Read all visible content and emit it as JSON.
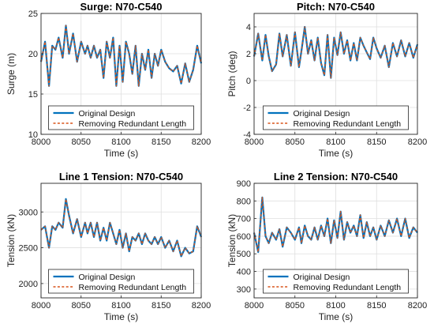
{
  "colors": {
    "original": "#0072BD",
    "redundant": "#D95319",
    "axis": "#262626",
    "grid": "#DFDFDF"
  },
  "legend": {
    "original": "Original Design",
    "redundant": "Removing Redundant Length"
  },
  "chart_data": [
    {
      "type": "line",
      "title": "Surge: N70-C540",
      "xlabel": "Time (s)",
      "ylabel": "Surge (m)",
      "xlim": [
        8000,
        8200
      ],
      "ylim": [
        10,
        25
      ],
      "xticks": [
        8000,
        8050,
        8100,
        8150,
        8200
      ],
      "yticks": [
        10,
        15,
        20,
        25
      ],
      "grid": true,
      "legend_position": "bottom-center",
      "series": [
        {
          "name": "Original Design",
          "x": [
            8000,
            8005,
            8010,
            8014,
            8018,
            8022,
            8027,
            8031,
            8035,
            8040,
            8045,
            8050,
            8055,
            8058,
            8062,
            8066,
            8070,
            8074,
            8078,
            8082,
            8086,
            8090,
            8094,
            8098,
            8102,
            8106,
            8110,
            8114,
            8118,
            8122,
            8126,
            8130,
            8134,
            8138,
            8142,
            8146,
            8150,
            8155,
            8160,
            8165,
            8170,
            8175,
            8180,
            8185,
            8190,
            8195,
            8200
          ],
          "values": [
            19,
            21.5,
            16,
            21,
            20.5,
            22,
            19.5,
            23.5,
            20,
            22.5,
            19,
            21.5,
            20,
            21,
            19.5,
            21,
            19.5,
            20.5,
            17,
            21.5,
            19.5,
            22,
            16,
            21,
            16.5,
            21.5,
            20,
            17.5,
            21,
            16,
            20,
            18,
            20.5,
            17,
            20,
            18.5,
            20.5,
            19,
            18.2,
            17.8,
            18.5,
            16.3,
            18.8,
            16.5,
            18,
            21,
            18.8
          ]
        },
        {
          "name": "Removing Redundant Length",
          "x": [
            8000,
            8005,
            8010,
            8014,
            8018,
            8022,
            8027,
            8031,
            8035,
            8040,
            8045,
            8050,
            8055,
            8058,
            8062,
            8066,
            8070,
            8074,
            8078,
            8082,
            8086,
            8090,
            8094,
            8098,
            8102,
            8106,
            8110,
            8114,
            8118,
            8122,
            8126,
            8130,
            8134,
            8138,
            8142,
            8146,
            8150,
            8155,
            8160,
            8165,
            8170,
            8175,
            8180,
            8185,
            8190,
            8195,
            8200
          ],
          "values": [
            19,
            21.5,
            16,
            21,
            20.5,
            22,
            19.5,
            23.5,
            20,
            22.5,
            19,
            21.5,
            20,
            21,
            19.5,
            21,
            19.5,
            20.5,
            17,
            21.5,
            19.5,
            22,
            16,
            21,
            16.5,
            21.5,
            20,
            17.5,
            21,
            16,
            20,
            18,
            20.5,
            17,
            20,
            18.5,
            20.5,
            19,
            18.2,
            17.8,
            18.5,
            16.3,
            18.8,
            16.5,
            18,
            21,
            18.8
          ]
        }
      ]
    },
    {
      "type": "line",
      "title": "Pitch: N70-C540",
      "xlabel": "Time (s)",
      "ylabel": "Pitch (deg)",
      "xlim": [
        8000,
        8200
      ],
      "ylim": [
        -4,
        5
      ],
      "xticks": [
        8000,
        8050,
        8100,
        8150,
        8200
      ],
      "yticks": [
        -4,
        -2,
        0,
        2,
        4
      ],
      "grid": true,
      "legend_position": "bottom-center",
      "series": [
        {
          "name": "Original Design",
          "x": [
            8000,
            8005,
            8010,
            8014,
            8018,
            8022,
            8027,
            8031,
            8035,
            8040,
            8045,
            8050,
            8055,
            8058,
            8062,
            8066,
            8070,
            8074,
            8078,
            8082,
            8086,
            8090,
            8094,
            8098,
            8102,
            8106,
            8110,
            8114,
            8118,
            8122,
            8126,
            8130,
            8134,
            8138,
            8142,
            8146,
            8150,
            8155,
            8160,
            8165,
            8170,
            8175,
            8180,
            8185,
            8190,
            8195,
            8200
          ],
          "values": [
            1.8,
            3.5,
            1.5,
            3.4,
            1.8,
            0.7,
            1.2,
            3.5,
            1.8,
            3.4,
            1.1,
            3.6,
            1,
            2.2,
            4,
            2,
            3,
            1.5,
            3.2,
            1.3,
            0.4,
            3.4,
            0.2,
            3.2,
            1.9,
            3.6,
            2,
            3,
            1.5,
            2.8,
            1.5,
            3.2,
            2.6,
            2.1,
            1.6,
            3.2,
            2.4,
            1.7,
            2.6,
            1,
            2.8,
            1.8,
            3,
            1.8,
            2.8,
            1.7,
            2.7
          ]
        },
        {
          "name": "Removing Redundant Length",
          "x": [
            8000,
            8005,
            8010,
            8014,
            8018,
            8022,
            8027,
            8031,
            8035,
            8040,
            8045,
            8050,
            8055,
            8058,
            8062,
            8066,
            8070,
            8074,
            8078,
            8082,
            8086,
            8090,
            8094,
            8098,
            8102,
            8106,
            8110,
            8114,
            8118,
            8122,
            8126,
            8130,
            8134,
            8138,
            8142,
            8146,
            8150,
            8155,
            8160,
            8165,
            8170,
            8175,
            8180,
            8185,
            8190,
            8195,
            8200
          ],
          "values": [
            1.8,
            3.5,
            1.5,
            3.4,
            1.8,
            0.7,
            1.2,
            3.5,
            1.8,
            3.4,
            1.1,
            3.6,
            1,
            2.2,
            4,
            2,
            3,
            1.5,
            3.2,
            1.3,
            0.4,
            3.4,
            0.2,
            3.2,
            1.9,
            3.6,
            2,
            3,
            1.5,
            2.8,
            1.5,
            3.2,
            2.6,
            2.1,
            1.6,
            3.2,
            2.4,
            1.7,
            2.6,
            1,
            2.8,
            1.8,
            3,
            1.8,
            2.8,
            1.7,
            2.7
          ]
        }
      ]
    },
    {
      "type": "line",
      "title": "Line 1 Tension: N70-C540",
      "xlabel": "Time (s)",
      "ylabel": "Tension (kN)",
      "xlim": [
        8000,
        8200
      ],
      "ylim": [
        1800,
        3400
      ],
      "xticks": [
        8000,
        8050,
        8100,
        8150,
        8200
      ],
      "yticks": [
        2000,
        2500,
        3000
      ],
      "grid": true,
      "legend_position": "bottom-center",
      "series": [
        {
          "name": "Original Design",
          "x": [
            8000,
            8005,
            8010,
            8014,
            8018,
            8022,
            8027,
            8031,
            8035,
            8040,
            8045,
            8050,
            8055,
            8058,
            8062,
            8066,
            8070,
            8074,
            8078,
            8082,
            8086,
            8090,
            8094,
            8098,
            8102,
            8106,
            8110,
            8114,
            8118,
            8122,
            8126,
            8130,
            8134,
            8138,
            8142,
            8146,
            8150,
            8155,
            8160,
            8165,
            8170,
            8175,
            8180,
            8185,
            8190,
            8195,
            8200
          ],
          "values": [
            2750,
            2800,
            2500,
            2800,
            2750,
            2850,
            2780,
            3180,
            2950,
            2700,
            2900,
            2650,
            2850,
            2700,
            2850,
            2650,
            2850,
            2600,
            2780,
            2600,
            2850,
            2700,
            2550,
            2750,
            2500,
            2700,
            2450,
            2650,
            2600,
            2700,
            2550,
            2700,
            2600,
            2550,
            2650,
            2550,
            2650,
            2500,
            2600,
            2450,
            2600,
            2380,
            2500,
            2420,
            2450,
            2800,
            2650
          ]
        },
        {
          "name": "Removing Redundant Length",
          "x": [
            8000,
            8005,
            8010,
            8014,
            8018,
            8022,
            8027,
            8031,
            8035,
            8040,
            8045,
            8050,
            8055,
            8058,
            8062,
            8066,
            8070,
            8074,
            8078,
            8082,
            8086,
            8090,
            8094,
            8098,
            8102,
            8106,
            8110,
            8114,
            8118,
            8122,
            8126,
            8130,
            8134,
            8138,
            8142,
            8146,
            8150,
            8155,
            8160,
            8165,
            8170,
            8175,
            8180,
            8185,
            8190,
            8195,
            8200
          ],
          "values": [
            2750,
            2800,
            2500,
            2800,
            2750,
            2850,
            2780,
            3180,
            2950,
            2700,
            2900,
            2650,
            2850,
            2700,
            2850,
            2650,
            2850,
            2600,
            2780,
            2600,
            2850,
            2700,
            2550,
            2750,
            2500,
            2700,
            2450,
            2650,
            2600,
            2700,
            2550,
            2700,
            2600,
            2550,
            2650,
            2550,
            2650,
            2500,
            2600,
            2450,
            2600,
            2380,
            2500,
            2420,
            2450,
            2800,
            2650
          ]
        }
      ]
    },
    {
      "type": "line",
      "title": "Line 2 Tension: N70-C540",
      "xlabel": "Time (s)",
      "ylabel": "Tension (kN)",
      "xlim": [
        8000,
        8200
      ],
      "ylim": [
        250,
        900
      ],
      "xticks": [
        8000,
        8050,
        8100,
        8150,
        8200
      ],
      "yticks": [
        300,
        400,
        500,
        600,
        700,
        800,
        900
      ],
      "grid": true,
      "legend_position": "bottom-center",
      "series": [
        {
          "name": "Original Design",
          "x": [
            8000,
            8005,
            8010,
            8014,
            8018,
            8022,
            8027,
            8031,
            8035,
            8040,
            8045,
            8050,
            8055,
            8058,
            8062,
            8066,
            8070,
            8074,
            8078,
            8082,
            8086,
            8090,
            8094,
            8098,
            8102,
            8106,
            8110,
            8114,
            8118,
            8122,
            8126,
            8130,
            8134,
            8138,
            8142,
            8146,
            8150,
            8155,
            8160,
            8165,
            8170,
            8175,
            8180,
            8185,
            8190,
            8195,
            8200
          ],
          "values": [
            620,
            510,
            820,
            600,
            560,
            620,
            580,
            640,
            540,
            650,
            620,
            580,
            650,
            560,
            660,
            600,
            580,
            650,
            580,
            660,
            600,
            700,
            560,
            690,
            590,
            740,
            580,
            680,
            620,
            660,
            600,
            720,
            590,
            680,
            600,
            650,
            580,
            660,
            600,
            690,
            620,
            700,
            600,
            700,
            590,
            650,
            620
          ]
        },
        {
          "name": "Removing Redundant Length",
          "x": [
            8000,
            8005,
            8010,
            8014,
            8018,
            8022,
            8027,
            8031,
            8035,
            8040,
            8045,
            8050,
            8055,
            8058,
            8062,
            8066,
            8070,
            8074,
            8078,
            8082,
            8086,
            8090,
            8094,
            8098,
            8102,
            8106,
            8110,
            8114,
            8118,
            8122,
            8126,
            8130,
            8134,
            8138,
            8142,
            8146,
            8150,
            8155,
            8160,
            8165,
            8170,
            8175,
            8180,
            8185,
            8190,
            8195,
            8200
          ],
          "values": [
            620,
            510,
            820,
            600,
            560,
            620,
            580,
            640,
            540,
            650,
            620,
            580,
            650,
            560,
            660,
            600,
            580,
            650,
            580,
            660,
            600,
            700,
            560,
            690,
            590,
            740,
            580,
            680,
            620,
            660,
            600,
            720,
            590,
            680,
            600,
            650,
            580,
            660,
            600,
            690,
            620,
            700,
            600,
            700,
            590,
            650,
            620
          ]
        }
      ]
    }
  ]
}
